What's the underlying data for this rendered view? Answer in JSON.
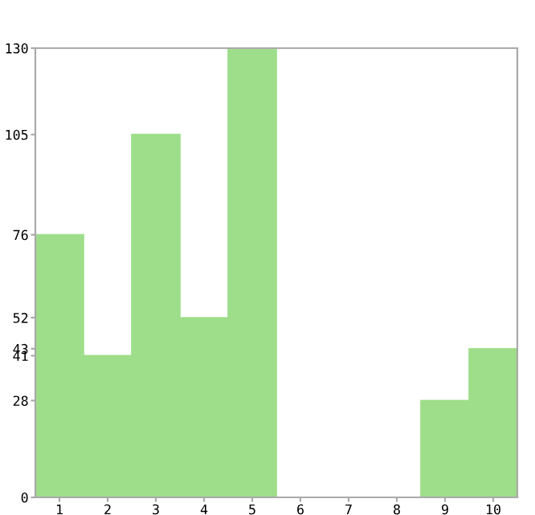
{
  "chart_data": {
    "type": "bar",
    "categories": [
      "1",
      "2",
      "3",
      "4",
      "5",
      "6",
      "7",
      "8",
      "9",
      "10"
    ],
    "values": [
      76,
      41,
      105,
      52,
      130,
      0,
      0,
      0,
      28,
      43
    ],
    "color": "#9ede8a",
    "ylim": [
      0,
      130
    ],
    "yticks": [
      0,
      28,
      41,
      43,
      52,
      76,
      105,
      130
    ],
    "grid": false
  }
}
